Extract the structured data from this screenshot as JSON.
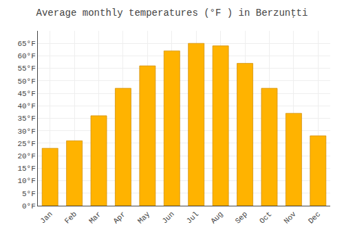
{
  "chart_data": {
    "type": "bar",
    "title": "Average monthly temperatures (°F ) in Berzunţti",
    "categories": [
      "Jan",
      "Feb",
      "Mar",
      "Apr",
      "May",
      "Jun",
      "Jul",
      "Aug",
      "Sep",
      "Oct",
      "Nov",
      "Dec"
    ],
    "values": [
      23,
      26,
      36,
      47,
      56,
      62,
      65,
      64,
      57,
      47,
      37,
      28
    ],
    "color": "#FFB300",
    "ylim": [
      0,
      70
    ],
    "yticks": [
      {
        "value": 0,
        "label": "0°F"
      },
      {
        "value": 5,
        "label": "5°F"
      },
      {
        "value": 10,
        "label": "10°F"
      },
      {
        "value": 15,
        "label": "15°F"
      },
      {
        "value": 20,
        "label": "20°F"
      },
      {
        "value": 25,
        "label": "25°F"
      },
      {
        "value": 30,
        "label": "30°F"
      },
      {
        "value": 35,
        "label": "35°F"
      },
      {
        "value": 40,
        "label": "40°F"
      },
      {
        "value": 45,
        "label": "45°F"
      },
      {
        "value": 50,
        "label": "50°F"
      },
      {
        "value": 55,
        "label": "55°F"
      },
      {
        "value": 60,
        "label": "60°F"
      },
      {
        "value": 65,
        "label": "65°F"
      }
    ],
    "grid": true
  }
}
